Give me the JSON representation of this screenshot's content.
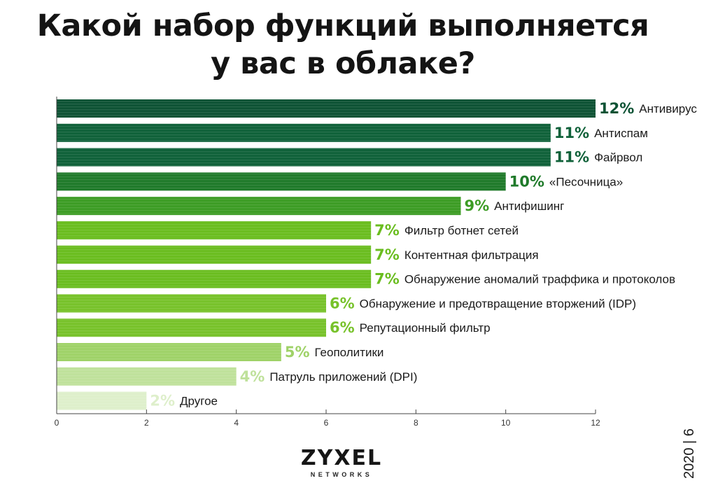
{
  "title": {
    "line1": "Какой набор функций выполняется",
    "line2": "у вас в облаке?"
  },
  "chart_data": {
    "type": "bar",
    "orientation": "horizontal",
    "title": "Какой набор функций выполняется у вас в облаке?",
    "categories": [
      "Антивирус",
      "Антиспам",
      "Файрвол",
      "«Песочница»",
      "Антифишинг",
      "Фильтр ботнет сетей",
      "Контентная фильтрация",
      "Обнаружение аномалий траффика и протоколов",
      "Обнаружение и предотвращение вторжений (IDP)",
      "Репутационный фильтр",
      "Геополитики",
      "Патруль приложений (DPI)",
      "Другое"
    ],
    "values": [
      12,
      11,
      11,
      10,
      9,
      7,
      7,
      7,
      6,
      6,
      5,
      4,
      2
    ],
    "value_labels": [
      "12%",
      "11%",
      "11%",
      "10%",
      "9%",
      "7%",
      "7%",
      "7%",
      "6%",
      "6%",
      "5%",
      "4%",
      "2%"
    ],
    "colors": [
      "#0d5234",
      "#0f6139",
      "#0f6139",
      "#1f7a2a",
      "#3c9c24",
      "#6abd1f",
      "#6abd1f",
      "#6abd1f",
      "#77c22a",
      "#77c22a",
      "#9fd268",
      "#bfe19b",
      "#deefcb"
    ],
    "xlim": [
      0,
      12
    ],
    "xticks": [
      0,
      2,
      4,
      6,
      8,
      10,
      12
    ],
    "xlabel": "",
    "ylabel": "",
    "grid": false,
    "legend": "none"
  },
  "logo": {
    "main": "ZYXEL",
    "sub": "NETWORKS"
  },
  "footer": "2020 | 6"
}
